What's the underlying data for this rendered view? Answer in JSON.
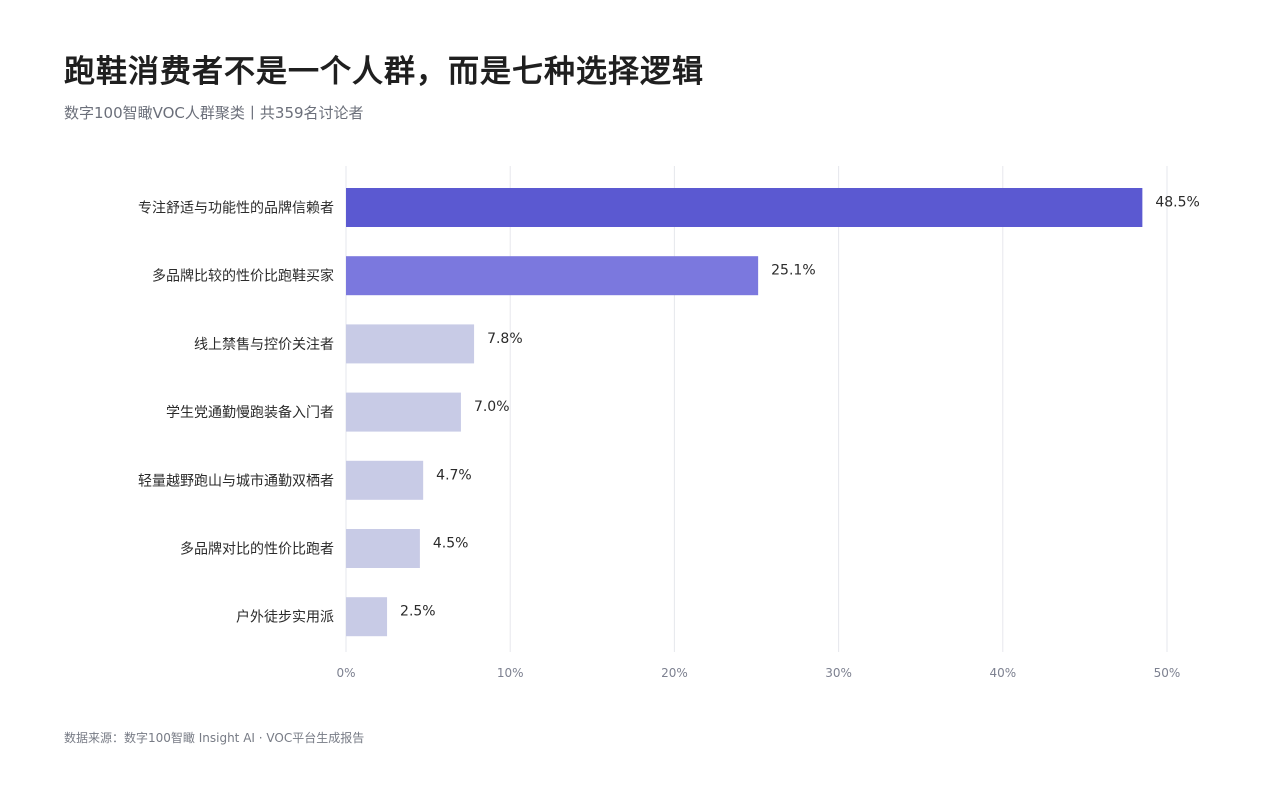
{
  "header": {
    "title": "跑鞋消费者不是一个人群，而是七种选择逻辑",
    "subtitle": "数字100智瞰VOC人群聚类丨共359名讨论者"
  },
  "footer": {
    "source": "数据来源：数字100智瞰 Insight AI ·  VOC平台生成报告"
  },
  "colors": {
    "bar_top1": "#5b59d1",
    "bar_top2": "#7b78de",
    "bar_other": "#c8cbe6",
    "grid": "#e6e7ec",
    "tick": "#7d8190",
    "label": "#2b2b2b"
  },
  "chart_data": {
    "type": "bar",
    "orientation": "horizontal",
    "title": "跑鞋消费者不是一个人群，而是七种选择逻辑",
    "subtitle": "数字100智瞰VOC人群聚类丨共359名讨论者",
    "categories": [
      "专注舒适与功能性的品牌信赖者",
      "多品牌比较的性价比跑鞋买家",
      "线上禁售与控价关注者",
      "学生党通勤慢跑装备入门者",
      "轻量越野跑山与城市通勤双栖者",
      "多品牌对比的性价比跑者",
      "户外徒步实用派"
    ],
    "values": [
      48.5,
      25.1,
      7.8,
      7.0,
      4.7,
      4.5,
      2.5
    ],
    "value_labels": [
      "48.5%",
      "25.1%",
      "7.8%",
      "7.0%",
      "4.7%",
      "4.5%",
      "2.5%"
    ],
    "xlim": [
      0,
      50
    ],
    "xticks": [
      0,
      10,
      20,
      30,
      40,
      50
    ],
    "xtick_labels": [
      "0%",
      "10%",
      "20%",
      "30%",
      "40%",
      "50%"
    ],
    "xlabel": "",
    "ylabel": "",
    "grid": "vertical",
    "legend": "none"
  }
}
